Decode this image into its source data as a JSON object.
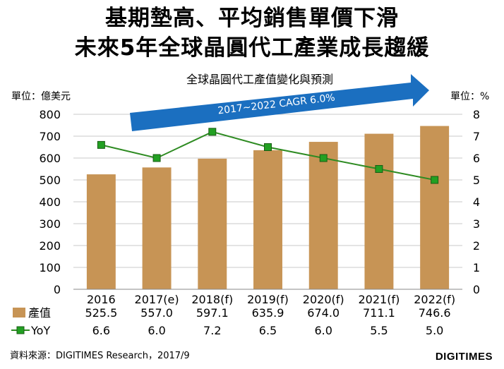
{
  "title_line1": "基期墊高、平均銷售單價下滑",
  "title_line2": "未來5年全球晶圓代工產業成長趨緩",
  "colors": {
    "bar": "#c79455",
    "line": "#2e8b22",
    "marker": "#22a022",
    "arrow": "#1b6fc0",
    "grid": "#c8c8c8"
  },
  "chart_data": {
    "type": "bar",
    "title": "全球晶圓代工產值變化與預測",
    "categories": [
      "2016",
      "2017(e)",
      "2018(f)",
      "2019(f)",
      "2020(f)",
      "2021(f)",
      "2022(f)"
    ],
    "series": [
      {
        "name": "產值",
        "type": "bar",
        "axis": "left",
        "values": [
          525.5,
          557.0,
          597.1,
          635.9,
          674.0,
          711.1,
          746.6
        ],
        "labels": [
          "525.5",
          "557.0",
          "597.1",
          "635.9",
          "674.0",
          "711.1",
          "746.6"
        ]
      },
      {
        "name": "YoY",
        "type": "line",
        "axis": "right",
        "values": [
          6.6,
          6.0,
          7.2,
          6.5,
          6.0,
          5.5,
          5.0
        ],
        "labels": [
          "6.6",
          "6.0",
          "7.2",
          "6.5",
          "6.0",
          "5.5",
          "5.0"
        ]
      }
    ],
    "ylabel_left": "單位：億美元",
    "ylabel_right": "單位：%",
    "ylim_left": [
      0,
      800
    ],
    "ylim_right": [
      0,
      8
    ],
    "yticks_left": [
      "0",
      "100",
      "200",
      "300",
      "400",
      "500",
      "600",
      "700",
      "800"
    ],
    "yticks_right": [
      "0",
      "1",
      "2",
      "3",
      "4",
      "5",
      "6",
      "7",
      "8"
    ],
    "annotation": "2017~2022 CAGR 6.0%",
    "grid": true,
    "legend": "data-table"
  },
  "source": "資料來源：DIGITIMES Research，2017/9",
  "logo": "DIGITIMES"
}
